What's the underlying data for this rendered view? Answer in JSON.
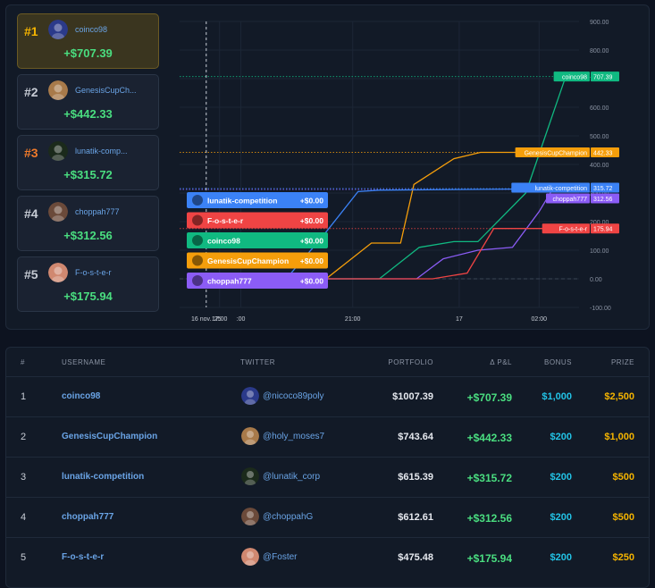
{
  "leaderboard": [
    {
      "rank": "#1",
      "name": "coinco98",
      "pnl": "+$707.39",
      "rank_color": "#f5b400",
      "avatar_color": "#2b3a8a"
    },
    {
      "rank": "#2",
      "name": "GenesisCupCh...",
      "pnl": "+$442.33",
      "rank_color": "#c7ccd5",
      "avatar_color": "#a87a4a"
    },
    {
      "rank": "#3",
      "name": "lunatik-comp...",
      "pnl": "+$315.72",
      "rank_color": "#f07a2a",
      "avatar_color": "#1b2a1b"
    },
    {
      "rank": "#4",
      "name": "choppah777",
      "pnl": "+$312.56",
      "rank_color": "#c7ccd5",
      "avatar_color": "#6b4a3a"
    },
    {
      "rank": "#5",
      "name": "F-o-s-t-e-r",
      "pnl": "+$175.94",
      "rank_color": "#c7ccd5",
      "avatar_color": "#d08870"
    }
  ],
  "chart_data": {
    "type": "line",
    "y_ticks": [
      "900.00",
      "800.00",
      "700.00",
      "600.00",
      "500.00",
      "400.00",
      "300.00",
      "200.00",
      "100.00",
      "0.00",
      "-100.00"
    ],
    "ylim": [
      -100,
      900
    ],
    "x_ticks": [
      {
        "label": "16 nov. '25",
        "t": 0.5
      },
      {
        "label": "17:00",
        "t": 1.0
      },
      {
        "label": ":00",
        "t": 1.8
      },
      {
        "label": "21:00",
        "t": 6.0
      },
      {
        "label": "17",
        "t": 10.0
      },
      {
        "label": "02:00",
        "t": 13.0
      }
    ],
    "xlim": [
      -0.5,
      14.5
    ],
    "crosshair_x": 0.5,
    "series": [
      {
        "name": "coinco98",
        "color": "#10b981",
        "final": "707.39",
        "points": [
          [
            0.5,
            0
          ],
          [
            4,
            0
          ],
          [
            7,
            0
          ],
          [
            8.5,
            110
          ],
          [
            9.8,
            130
          ],
          [
            10.7,
            130
          ],
          [
            12.5,
            300
          ],
          [
            14,
            707.39
          ],
          [
            14.5,
            707.39
          ]
        ]
      },
      {
        "name": "GenesisCupChampion",
        "color": "#f59e0b",
        "final": "442.33",
        "points": [
          [
            0.5,
            0
          ],
          [
            3,
            0
          ],
          [
            5,
            0
          ],
          [
            6.7,
            125
          ],
          [
            7.8,
            125
          ],
          [
            8.3,
            330
          ],
          [
            9.8,
            420
          ],
          [
            10.8,
            442.33
          ],
          [
            14.5,
            442.33
          ]
        ]
      },
      {
        "name": "lunatik-competition",
        "color": "#3b82f6",
        "final": "315.72",
        "points": [
          [
            0.5,
            0
          ],
          [
            2,
            0
          ],
          [
            3.5,
            0
          ],
          [
            4.8,
            140
          ],
          [
            6.2,
            305
          ],
          [
            7,
            310
          ],
          [
            14.5,
            315.72
          ]
        ]
      },
      {
        "name": "choppah777",
        "color": "#8b5cf6",
        "final": "312.56",
        "points": [
          [
            0.5,
            0
          ],
          [
            3.5,
            0
          ],
          [
            7,
            0
          ],
          [
            8.4,
            0
          ],
          [
            9.4,
            70
          ],
          [
            10.7,
            100
          ],
          [
            12,
            110
          ],
          [
            13,
            235
          ],
          [
            13.5,
            312.56
          ],
          [
            14.5,
            312.56
          ]
        ]
      },
      {
        "name": "F-o-s-t-e-r",
        "color": "#ef4444",
        "final": "175.94",
        "points": [
          [
            0.5,
            0
          ],
          [
            6,
            0
          ],
          [
            9,
            0
          ],
          [
            10.3,
            20
          ],
          [
            11.3,
            175.94
          ],
          [
            14.5,
            175.94
          ]
        ]
      }
    ],
    "tooltip": [
      {
        "name": "lunatik-competition",
        "value": "+$0.00",
        "color": "#3b82f6"
      },
      {
        "name": "F-o-s-t-e-r",
        "value": "+$0.00",
        "color": "#ef4444"
      },
      {
        "name": "coinco98",
        "value": "+$0.00",
        "color": "#10b981"
      },
      {
        "name": "GenesisCupChampion",
        "value": "+$0.00",
        "color": "#f59e0b"
      },
      {
        "name": "choppah777",
        "value": "+$0.00",
        "color": "#8b5cf6"
      }
    ],
    "labels": [
      {
        "name": "coinco98",
        "value": "707.39",
        "color": "#10b981",
        "y": 707.39
      },
      {
        "name": "GenesisCupChampion",
        "value": "442.33",
        "color": "#f59e0b",
        "y": 442.33
      },
      {
        "name": "lunatik-competition",
        "value": "315.72",
        "color": "#3b82f6",
        "y": 315.72
      },
      {
        "name": "choppah777",
        "value": "312.56",
        "color": "#8b5cf6",
        "y": 312.56
      },
      {
        "name": "F-o-s-t-e-r",
        "value": "175.94",
        "color": "#ef4444",
        "y": 175.94
      }
    ]
  },
  "table": {
    "headers": {
      "rank": "#",
      "username": "USERNAME",
      "twitter": "TWITTER",
      "portfolio": "PORTFOLIO",
      "pnl": "Δ P&L",
      "bonus": "BONUS",
      "prize": "PRIZE"
    },
    "rows": [
      {
        "rank": "1",
        "username": "coinco98",
        "twitter": "@nicoco89poly",
        "portfolio": "$1007.39",
        "pnl": "+$707.39",
        "bonus": "$1,000",
        "prize": "$2,500",
        "avatar_color": "#2b3a8a"
      },
      {
        "rank": "2",
        "username": "GenesisCupChampion",
        "twitter": "@holy_moses7",
        "portfolio": "$743.64",
        "pnl": "+$442.33",
        "bonus": "$200",
        "prize": "$1,000",
        "avatar_color": "#a87a4a"
      },
      {
        "rank": "3",
        "username": "lunatik-competition",
        "twitter": "@lunatik_corp",
        "portfolio": "$615.39",
        "pnl": "+$315.72",
        "bonus": "$200",
        "prize": "$500",
        "avatar_color": "#1b2a1b"
      },
      {
        "rank": "4",
        "username": "choppah777",
        "twitter": "@choppahG",
        "portfolio": "$612.61",
        "pnl": "+$312.56",
        "bonus": "$200",
        "prize": "$500",
        "avatar_color": "#6b4a3a"
      },
      {
        "rank": "5",
        "username": "F-o-s-t-e-r",
        "twitter": "@Foster",
        "portfolio": "$475.48",
        "pnl": "+$175.94",
        "bonus": "$200",
        "prize": "$250",
        "avatar_color": "#d08870"
      }
    ]
  }
}
